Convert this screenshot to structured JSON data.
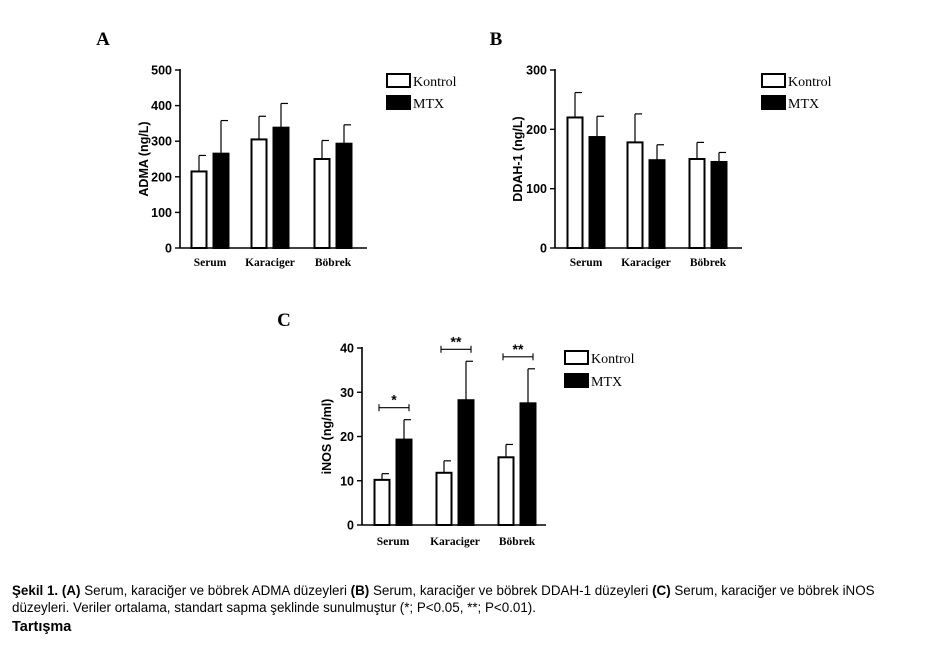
{
  "chart_data": [
    {
      "panel": "A",
      "type": "bar",
      "ylabel": "ADMA (ng/L)",
      "ylim": [
        0,
        500
      ],
      "yticks": [
        0,
        100,
        200,
        300,
        400,
        500
      ],
      "categories": [
        "Serum",
        "Karaciger",
        "Böbrek"
      ],
      "series": [
        {
          "name": "Kontrol",
          "values": [
            215,
            305,
            250
          ],
          "errors": [
            45,
            65,
            52
          ]
        },
        {
          "name": "MTX",
          "values": [
            265,
            338,
            293
          ],
          "errors": [
            93,
            68,
            53
          ]
        }
      ],
      "legend": "top-right",
      "grid": false
    },
    {
      "panel": "B",
      "type": "bar",
      "ylabel": "DDAH-1 (ng/L)",
      "ylim": [
        0,
        300
      ],
      "yticks": [
        0,
        100,
        200,
        300
      ],
      "categories": [
        "Serum",
        "Karaciger",
        "Böbrek"
      ],
      "series": [
        {
          "name": "Kontrol",
          "values": [
            220,
            178,
            150
          ],
          "errors": [
            42,
            48,
            28
          ]
        },
        {
          "name": "MTX",
          "values": [
            187,
            148,
            145
          ],
          "errors": [
            35,
            26,
            16
          ]
        }
      ],
      "legend": "top-right",
      "grid": false
    },
    {
      "panel": "C",
      "type": "bar",
      "ylabel": "iNOS (ng/ml)",
      "ylim": [
        0,
        40
      ],
      "yticks": [
        0,
        10,
        20,
        30,
        40
      ],
      "categories": [
        "Serum",
        "Karaciger",
        "Böbrek"
      ],
      "series": [
        {
          "name": "Kontrol",
          "values": [
            10.2,
            11.8,
            15.3
          ],
          "errors": [
            1.4,
            2.7,
            2.9
          ]
        },
        {
          "name": "MTX",
          "values": [
            19.3,
            28.2,
            27.5
          ],
          "errors": [
            4.5,
            8.8,
            7.8
          ]
        }
      ],
      "significance": [
        "*",
        "**",
        "**"
      ],
      "legend": "top-right",
      "grid": false
    }
  ],
  "caption": {
    "lead": "Şekil 1.",
    "a_tag": "(A)",
    "a_text": " Serum, karaciğer ve böbrek ADMA düzeyleri ",
    "b_tag": "(B)",
    "b_text": " Serum, karaciğer ve böbrek DDAH-1 düzeyleri ",
    "c_tag": "(C)",
    "c_text": " Serum, karaciğer ve böbrek iNOS düzeyleri. Veriler ortalama, standart sapma şeklinde sunulmuştur (*; P<0.05, **; P<0.01)."
  },
  "section_title": "Tartışma"
}
